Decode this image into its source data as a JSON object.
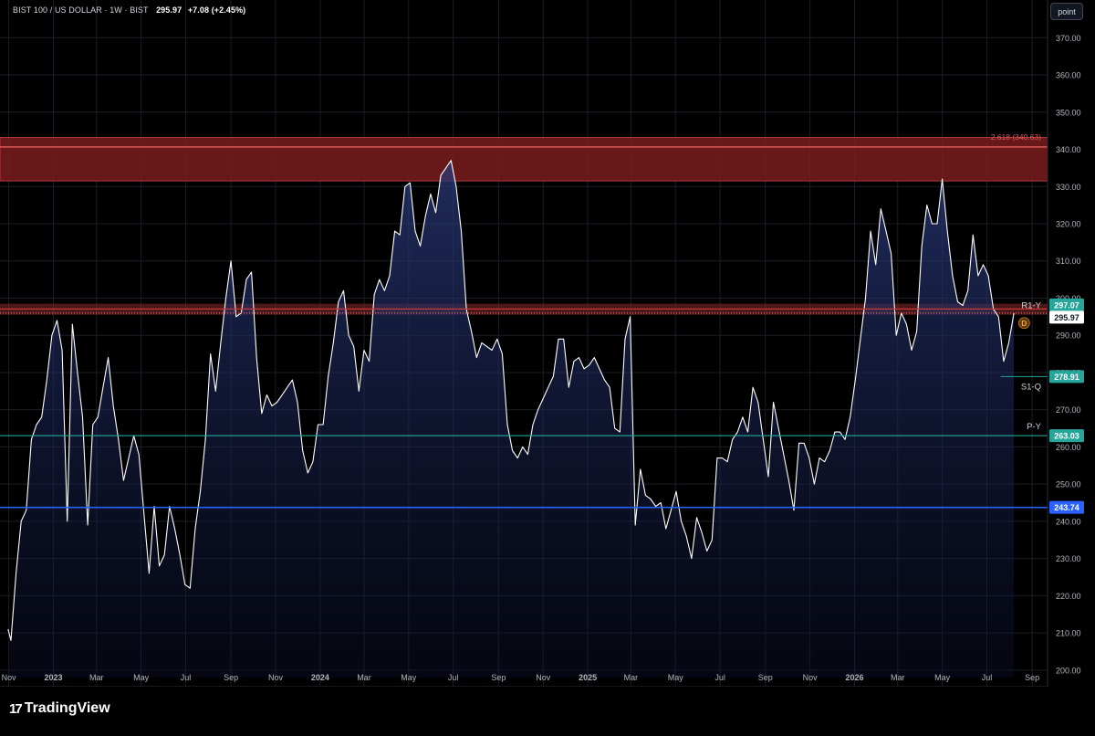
{
  "header": {
    "symbol": "BIST 100 / US DOLLAR",
    "interval": "1W",
    "exchange": "BIST",
    "last": "295.97",
    "change": "+7.08 (+2.45%)"
  },
  "toolbar": {
    "point_label": "point"
  },
  "footer": {
    "brand": "TradingView"
  },
  "colors": {
    "line": "#ffffff",
    "area_top": "#2a3a7a",
    "resistance_zone": "#7a1c1c",
    "resistance_line": "#ff6b6b",
    "pivot_teal": "#26a69a",
    "support_blue": "#2962ff"
  },
  "chart_data": {
    "type": "area",
    "ylim": [
      198,
      374
    ],
    "xlim": [
      "2022-10-30",
      "2026-09-22"
    ],
    "yticks": [
      200,
      210,
      220,
      230,
      240,
      250,
      260,
      270,
      280,
      290,
      300,
      310,
      320,
      330,
      340,
      350,
      360,
      370
    ],
    "xticks": [
      {
        "label": "Nov",
        "date": "2022-11-01",
        "bold": false
      },
      {
        "label": "2023",
        "date": "2023-01-01",
        "bold": true
      },
      {
        "label": "Mar",
        "date": "2023-03-01",
        "bold": false
      },
      {
        "label": "May",
        "date": "2023-05-01",
        "bold": false
      },
      {
        "label": "Jul",
        "date": "2023-07-01",
        "bold": false
      },
      {
        "label": "Sep",
        "date": "2023-09-01",
        "bold": false
      },
      {
        "label": "Nov",
        "date": "2023-11-01",
        "bold": false
      },
      {
        "label": "2024",
        "date": "2024-01-01",
        "bold": true
      },
      {
        "label": "Mar",
        "date": "2024-03-01",
        "bold": false
      },
      {
        "label": "May",
        "date": "2024-05-01",
        "bold": false
      },
      {
        "label": "Jul",
        "date": "2024-07-01",
        "bold": false
      },
      {
        "label": "Sep",
        "date": "2024-09-01",
        "bold": false
      },
      {
        "label": "Nov",
        "date": "2024-11-01",
        "bold": false
      },
      {
        "label": "2025",
        "date": "2025-01-01",
        "bold": true
      },
      {
        "label": "Mar",
        "date": "2025-03-01",
        "bold": false
      },
      {
        "label": "May",
        "date": "2025-05-01",
        "bold": false
      },
      {
        "label": "Jul",
        "date": "2025-07-01",
        "bold": false
      },
      {
        "label": "Sep",
        "date": "2025-09-01",
        "bold": false
      },
      {
        "label": "Nov",
        "date": "2025-11-01",
        "bold": false
      },
      {
        "label": "2026",
        "date": "2026-01-01",
        "bold": true
      },
      {
        "label": "Mar",
        "date": "2026-03-01",
        "bold": false
      },
      {
        "label": "May",
        "date": "2026-05-01",
        "bold": false
      },
      {
        "label": "Jul",
        "date": "2026-07-01",
        "bold": false
      },
      {
        "label": "Sep",
        "date": "2026-09-01",
        "bold": false
      }
    ],
    "series": [
      {
        "values": [
          [
            "2022-10-31",
            211
          ],
          [
            "2022-11-04",
            208
          ],
          [
            "2022-11-11",
            226
          ],
          [
            "2022-11-18",
            240
          ],
          [
            "2022-11-25",
            243
          ],
          [
            "2022-12-02",
            262
          ],
          [
            "2022-12-09",
            266
          ],
          [
            "2022-12-16",
            268
          ],
          [
            "2022-12-23",
            278
          ],
          [
            "2022-12-30",
            290
          ],
          [
            "2023-01-06",
            294
          ],
          [
            "2023-01-13",
            286
          ],
          [
            "2023-01-20",
            240
          ],
          [
            "2023-01-27",
            293
          ],
          [
            "2023-02-03",
            280
          ],
          [
            "2023-02-10",
            268
          ],
          [
            "2023-02-17",
            239
          ],
          [
            "2023-02-24",
            266
          ],
          [
            "2023-03-03",
            268
          ],
          [
            "2023-03-10",
            276
          ],
          [
            "2023-03-17",
            284
          ],
          [
            "2023-03-24",
            271
          ],
          [
            "2023-03-31",
            262
          ],
          [
            "2023-04-07",
            251
          ],
          [
            "2023-04-14",
            257
          ],
          [
            "2023-04-21",
            263
          ],
          [
            "2023-04-28",
            258
          ],
          [
            "2023-05-05",
            242
          ],
          [
            "2023-05-12",
            226
          ],
          [
            "2023-05-19",
            244
          ],
          [
            "2023-05-26",
            228
          ],
          [
            "2023-06-02",
            231
          ],
          [
            "2023-06-09",
            244
          ],
          [
            "2023-06-16",
            238
          ],
          [
            "2023-06-23",
            231
          ],
          [
            "2023-06-30",
            223
          ],
          [
            "2023-07-07",
            222
          ],
          [
            "2023-07-14",
            238
          ],
          [
            "2023-07-21",
            248
          ],
          [
            "2023-07-28",
            262
          ],
          [
            "2023-08-04",
            285
          ],
          [
            "2023-08-11",
            275
          ],
          [
            "2023-08-18",
            288
          ],
          [
            "2023-08-25",
            300
          ],
          [
            "2023-09-01",
            310
          ],
          [
            "2023-09-08",
            295
          ],
          [
            "2023-09-15",
            296
          ],
          [
            "2023-09-22",
            305
          ],
          [
            "2023-09-29",
            307
          ],
          [
            "2023-10-06",
            284
          ],
          [
            "2023-10-13",
            269
          ],
          [
            "2023-10-20",
            274
          ],
          [
            "2023-10-27",
            271
          ],
          [
            "2023-11-03",
            272
          ],
          [
            "2023-11-10",
            274
          ],
          [
            "2023-11-17",
            276
          ],
          [
            "2023-11-24",
            278
          ],
          [
            "2023-12-01",
            272
          ],
          [
            "2023-12-08",
            259
          ],
          [
            "2023-12-15",
            253
          ],
          [
            "2023-12-22",
            256
          ],
          [
            "2023-12-29",
            266
          ],
          [
            "2024-01-05",
            266
          ],
          [
            "2024-01-12",
            279
          ],
          [
            "2024-01-19",
            288
          ],
          [
            "2024-01-26",
            299
          ],
          [
            "2024-02-02",
            302
          ],
          [
            "2024-02-09",
            290
          ],
          [
            "2024-02-16",
            287
          ],
          [
            "2024-02-23",
            275
          ],
          [
            "2024-03-01",
            286
          ],
          [
            "2024-03-08",
            283
          ],
          [
            "2024-03-15",
            301
          ],
          [
            "2024-03-22",
            305
          ],
          [
            "2024-03-29",
            302
          ],
          [
            "2024-04-05",
            306
          ],
          [
            "2024-04-12",
            318
          ],
          [
            "2024-04-19",
            317
          ],
          [
            "2024-04-26",
            330
          ],
          [
            "2024-05-03",
            331
          ],
          [
            "2024-05-10",
            318
          ],
          [
            "2024-05-17",
            314
          ],
          [
            "2024-05-24",
            322
          ],
          [
            "2024-05-31",
            328
          ],
          [
            "2024-06-07",
            323
          ],
          [
            "2024-06-14",
            333
          ],
          [
            "2024-06-21",
            335
          ],
          [
            "2024-06-28",
            337
          ],
          [
            "2024-07-05",
            330
          ],
          [
            "2024-07-12",
            318
          ],
          [
            "2024-07-19",
            297
          ],
          [
            "2024-07-26",
            291
          ],
          [
            "2024-08-02",
            284
          ],
          [
            "2024-08-09",
            288
          ],
          [
            "2024-08-16",
            287
          ],
          [
            "2024-08-23",
            286
          ],
          [
            "2024-08-30",
            289
          ],
          [
            "2024-09-06",
            285
          ],
          [
            "2024-09-13",
            266
          ],
          [
            "2024-09-20",
            259
          ],
          [
            "2024-09-27",
            257
          ],
          [
            "2024-10-04",
            260
          ],
          [
            "2024-10-11",
            258
          ],
          [
            "2024-10-18",
            266
          ],
          [
            "2024-10-25",
            270
          ],
          [
            "2024-11-01",
            273
          ],
          [
            "2024-11-08",
            276
          ],
          [
            "2024-11-15",
            279
          ],
          [
            "2024-11-22",
            289
          ],
          [
            "2024-11-29",
            289
          ],
          [
            "2024-12-06",
            276
          ],
          [
            "2024-12-13",
            283
          ],
          [
            "2024-12-20",
            284
          ],
          [
            "2024-12-27",
            281
          ],
          [
            "2025-01-03",
            282
          ],
          [
            "2025-01-10",
            284
          ],
          [
            "2025-01-17",
            281
          ],
          [
            "2025-01-24",
            278
          ],
          [
            "2025-01-31",
            276
          ],
          [
            "2025-02-07",
            265
          ],
          [
            "2025-02-14",
            264
          ],
          [
            "2025-02-21",
            289
          ],
          [
            "2025-02-28",
            295
          ],
          [
            "2025-03-07",
            239
          ],
          [
            "2025-03-14",
            254
          ],
          [
            "2025-03-21",
            247
          ],
          [
            "2025-03-28",
            246
          ],
          [
            "2025-04-04",
            244
          ],
          [
            "2025-04-11",
            245
          ],
          [
            "2025-04-18",
            238
          ],
          [
            "2025-04-25",
            243
          ],
          [
            "2025-05-02",
            248
          ],
          [
            "2025-05-09",
            240
          ],
          [
            "2025-05-16",
            236
          ],
          [
            "2025-05-23",
            230
          ],
          [
            "2025-05-30",
            241
          ],
          [
            "2025-06-06",
            237
          ],
          [
            "2025-06-13",
            232
          ],
          [
            "2025-06-20",
            235
          ],
          [
            "2025-06-27",
            257
          ],
          [
            "2025-07-04",
            257
          ],
          [
            "2025-07-11",
            256
          ],
          [
            "2025-07-18",
            262
          ],
          [
            "2025-07-25",
            264
          ],
          [
            "2025-08-01",
            268
          ],
          [
            "2025-08-08",
            264
          ],
          [
            "2025-08-15",
            276
          ],
          [
            "2025-08-22",
            272
          ],
          [
            "2025-08-29",
            262
          ],
          [
            "2025-09-05",
            252
          ],
          [
            "2025-09-12",
            272
          ],
          [
            "2025-09-19",
            265
          ],
          [
            "2025-09-26",
            258
          ],
          [
            "2025-10-03",
            251
          ],
          [
            "2025-10-10",
            243
          ],
          [
            "2025-10-17",
            261
          ],
          [
            "2025-10-24",
            261
          ],
          [
            "2025-10-31",
            257
          ],
          [
            "2025-11-07",
            250
          ],
          [
            "2025-11-14",
            257
          ],
          [
            "2025-11-21",
            256
          ],
          [
            "2025-11-28",
            259
          ],
          [
            "2025-12-05",
            264
          ],
          [
            "2025-12-12",
            264
          ],
          [
            "2025-12-19",
            262
          ],
          [
            "2025-12-26",
            268
          ],
          [
            "2026-01-02",
            278
          ],
          [
            "2026-01-09",
            289
          ],
          [
            "2026-01-16",
            300
          ],
          [
            "2026-01-23",
            318
          ],
          [
            "2026-01-30",
            309
          ],
          [
            "2026-02-06",
            324
          ],
          [
            "2026-02-13",
            318
          ],
          [
            "2026-02-20",
            312
          ],
          [
            "2026-02-27",
            290
          ],
          [
            "2026-03-06",
            296
          ],
          [
            "2026-03-13",
            293
          ],
          [
            "2026-03-20",
            286
          ],
          [
            "2026-03-27",
            291
          ],
          [
            "2026-04-03",
            314
          ],
          [
            "2026-04-10",
            325
          ],
          [
            "2026-04-17",
            320
          ],
          [
            "2026-04-24",
            320
          ],
          [
            "2026-05-01",
            332
          ],
          [
            "2026-05-08",
            318
          ],
          [
            "2026-05-15",
            306
          ],
          [
            "2026-05-22",
            299
          ],
          [
            "2026-05-29",
            298
          ],
          [
            "2026-06-05",
            302
          ],
          [
            "2026-06-12",
            317
          ],
          [
            "2026-06-19",
            306
          ],
          [
            "2026-06-26",
            309
          ],
          [
            "2026-07-03",
            306
          ],
          [
            "2026-07-10",
            297
          ],
          [
            "2026-07-17",
            295
          ],
          [
            "2026-07-24",
            283
          ],
          [
            "2026-07-31",
            288
          ],
          [
            "2026-08-07",
            295.97
          ]
        ]
      }
    ],
    "levels": [
      {
        "name": "fib",
        "label": "2.618 (340.63)",
        "value": 340.63
      },
      {
        "name": "R1-Y",
        "label": "R1-Y",
        "value": 297.07,
        "badge": "297.07"
      },
      {
        "name": "last",
        "value": 295.97,
        "badge": "295.97"
      },
      {
        "name": "S1-Q",
        "label": "S1-Q",
        "value": 278.91,
        "badge": "278.91"
      },
      {
        "name": "P-Y",
        "label": "P-Y",
        "value": 263.03,
        "badge": "263.03"
      },
      {
        "name": "support",
        "value": 243.74,
        "badge": "243.74"
      }
    ],
    "zones": [
      {
        "name": "resistance-zone",
        "from": 331.5,
        "to": 343.2
      },
      {
        "name": "r1-band",
        "from": 295.5,
        "to": 298.5
      }
    ],
    "marker": {
      "label": "D",
      "date": "2026-08-11",
      "value": 293.8
    }
  }
}
